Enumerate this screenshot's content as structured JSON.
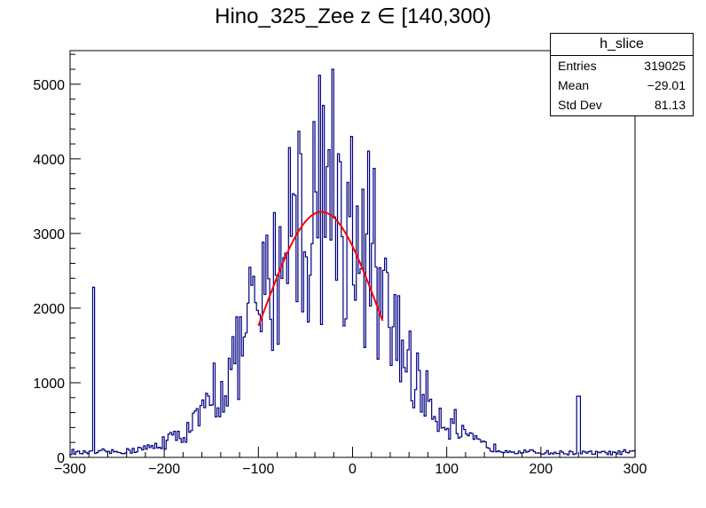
{
  "title": "Hino_325_Zee z  ∈ [140,300)",
  "stats": {
    "name": "h_slice",
    "rows": [
      {
        "label": "Entries",
        "value": "319025"
      },
      {
        "label": "Mean",
        "value": "−29.01"
      },
      {
        "label": "Std Dev",
        "value": "81.13"
      }
    ]
  },
  "colors": {
    "histogram": "#000080",
    "fit": "#ff0000",
    "axis": "#000000"
  },
  "chart_data": {
    "type": "histogram",
    "title": "Hino_325_Zee z  ∈ [140,300)",
    "xlabel": "",
    "ylabel": "",
    "xlim": [
      -300,
      300
    ],
    "ylim": [
      0,
      5450
    ],
    "x_ticks": [
      -300,
      -200,
      -100,
      0,
      100,
      200,
      300
    ],
    "y_ticks": [
      0,
      1000,
      2000,
      3000,
      4000,
      5000
    ],
    "bin_width": 2,
    "peaks": [
      {
        "x": -275,
        "y": 2280
      },
      {
        "x": -67,
        "y": 4150
      },
      {
        "x": -35,
        "y": 5120
      },
      {
        "x": -21,
        "y": 5200
      },
      {
        "x": -1,
        "y": 4300
      },
      {
        "x": 240,
        "y": 820
      }
    ],
    "fit": {
      "function": "gaussian",
      "amplitude": 3290,
      "mean": -33,
      "sigma": 60,
      "range": [
        -100,
        32
      ]
    }
  }
}
